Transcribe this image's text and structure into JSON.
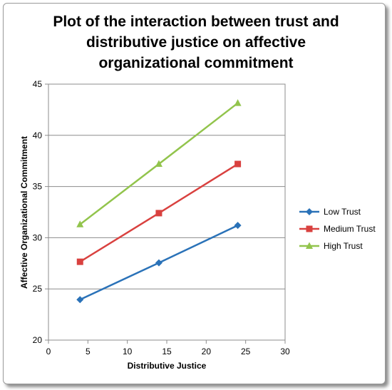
{
  "chart_data": {
    "type": "line",
    "title_lines": [
      "Plot of the interaction between trust and",
      "distributive justice on affective",
      "organizational commitment"
    ],
    "xlabel": "Distributive Justice",
    "ylabel": "Affective Organizational Commitment",
    "xlim": [
      0,
      30
    ],
    "ylim": [
      20,
      45
    ],
    "xticks": [
      0,
      5,
      10,
      15,
      20,
      25,
      30
    ],
    "yticks": [
      20,
      25,
      30,
      35,
      40,
      45
    ],
    "grid": "horizontal",
    "legend_position": "right",
    "x": [
      4,
      14,
      24
    ],
    "series": [
      {
        "name": "Low Trust",
        "values": [
          23.95,
          27.55,
          31.2
        ],
        "color": "#2a72b8",
        "marker": "diamond"
      },
      {
        "name": "Medium Trust",
        "values": [
          27.65,
          32.4,
          37.2
        ],
        "color": "#d9413f",
        "marker": "square"
      },
      {
        "name": "High Trust",
        "values": [
          31.3,
          37.2,
          43.15
        ],
        "color": "#92c44c",
        "marker": "triangle"
      }
    ]
  }
}
